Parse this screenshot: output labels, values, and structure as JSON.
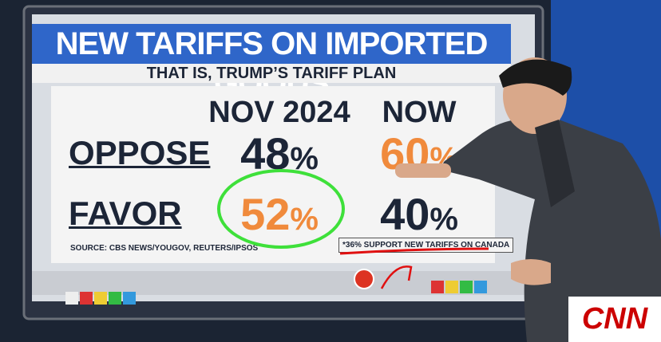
{
  "header": {
    "title": "NEW TARIFFS ON IMPORTED GOODS",
    "subtitle": "THAT IS, TRUMP’S TARIFF PLAN"
  },
  "table": {
    "columns": [
      "NOV 2024",
      "NOW"
    ],
    "rows": [
      {
        "label": "OPPOSE",
        "cells": [
          {
            "number": "48",
            "unit": "%"
          },
          {
            "number": "60",
            "unit": "%"
          }
        ]
      },
      {
        "label": "FAVOR",
        "cells": [
          {
            "number": "52",
            "unit": "%"
          },
          {
            "number": "40",
            "unit": "%"
          }
        ]
      }
    ]
  },
  "source": "SOURCE: CBS NEWS/YOUGOV, REUTERS/IPSOS",
  "note": "*36% SUPPORT NEW TARIFFS ON CANADA",
  "logo": "CNN"
}
